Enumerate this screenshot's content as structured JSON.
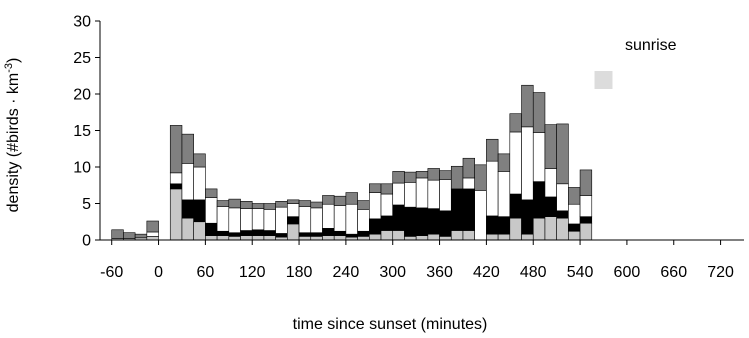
{
  "chart_data": {
    "type": "stacked-bar",
    "xlabel": "time since sunset (minutes)",
    "ylabel_main": "density (#birds · km",
    "ylabel_sup": "-3",
    "ylabel_close": ")",
    "annotation": "sunrise",
    "annotation_marker_x": 570,
    "xlim": [
      -75,
      750
    ],
    "ylim": [
      0,
      30
    ],
    "xticks": [
      -60,
      0,
      60,
      120,
      180,
      240,
      300,
      360,
      420,
      480,
      540,
      600,
      660,
      720
    ],
    "yticks": [
      0,
      5,
      10,
      15,
      20,
      25,
      30
    ],
    "bin_width_minutes": 15,
    "x": [
      -52.5,
      -37.5,
      -22.5,
      -7.5,
      22.5,
      37.5,
      52.5,
      67.5,
      82.5,
      97.5,
      112.5,
      127.5,
      142.5,
      157.5,
      172.5,
      187.5,
      202.5,
      217.5,
      232.5,
      247.5,
      262.5,
      277.5,
      292.5,
      307.5,
      322.5,
      337.5,
      352.5,
      367.5,
      382.5,
      397.5,
      412.5,
      427.5,
      442.5,
      457.5,
      472.5,
      487.5,
      502.5,
      517.5,
      532.5,
      547.5,
      562.5
    ],
    "series": [
      {
        "name": "",
        "color": "#c8c8c8",
        "values": [
          0.2,
          0.2,
          0.3,
          0.5,
          7,
          3,
          2.5,
          0.6,
          0.6,
          0.5,
          0.6,
          0.6,
          0.6,
          0.4,
          2.2,
          0.5,
          0.5,
          0.6,
          0.6,
          0.4,
          0.5,
          0.8,
          1.3,
          1.3,
          0.5,
          0.6,
          0.8,
          0.5,
          1.3,
          1.3,
          0,
          0.8,
          0.8,
          3,
          0.8,
          3,
          3.2,
          3,
          1.2,
          2.3,
          0
        ],
        "hollow": [
          false,
          false,
          false,
          false,
          false,
          false,
          false,
          false,
          false,
          false,
          false,
          false,
          false,
          false,
          false,
          false,
          false,
          false,
          false,
          false,
          false,
          false,
          false,
          false,
          false,
          false,
          false,
          false,
          false,
          false,
          false,
          false,
          false,
          false,
          false,
          false,
          false,
          false,
          false,
          false,
          false
        ]
      },
      {
        "name": "",
        "color": "#000000",
        "values": [
          0,
          0,
          0,
          0,
          0.7,
          2.5,
          3,
          1.7,
          0.6,
          0.5,
          0.7,
          0.8,
          0.7,
          0.5,
          1,
          0.5,
          0.5,
          1,
          0.6,
          0.4,
          0.7,
          2.1,
          2,
          3.5,
          4,
          3.8,
          3.5,
          3.5,
          5.7,
          5.7,
          0,
          2.5,
          2.4,
          3.3,
          4.7,
          5,
          2.7,
          1,
          1,
          0.9,
          0
        ]
      },
      {
        "name": "",
        "color": "#ffffff",
        "values": [
          0,
          0,
          0,
          0.6,
          1.5,
          5,
          4.5,
          3.5,
          3.4,
          3.4,
          3,
          2.9,
          2.9,
          3.6,
          1.8,
          3.6,
          3.4,
          3.3,
          3.5,
          4.1,
          3,
          3.6,
          3,
          3,
          3.4,
          4.1,
          3.9,
          4.3,
          0,
          1.5,
          6.8,
          7.5,
          6.2,
          8.5,
          10,
          6.7,
          3.9,
          3.7,
          2.7,
          2.9,
          0
        ]
      },
      {
        "name": "",
        "color": "#808080",
        "values": [
          1.2,
          0.8,
          0.5,
          1.5,
          6.5,
          4,
          1.8,
          1.2,
          0.8,
          1.2,
          1,
          0.7,
          0.8,
          0.8,
          0.5,
          0.8,
          0.8,
          1.2,
          1.3,
          1.6,
          1.2,
          1.2,
          1.4,
          1.6,
          1.4,
          0.9,
          1.6,
          1.2,
          3.1,
          2.7,
          3.5,
          3,
          2.4,
          2.5,
          5.7,
          5.5,
          6,
          8.2,
          2.3,
          3.5,
          0
        ]
      }
    ]
  }
}
